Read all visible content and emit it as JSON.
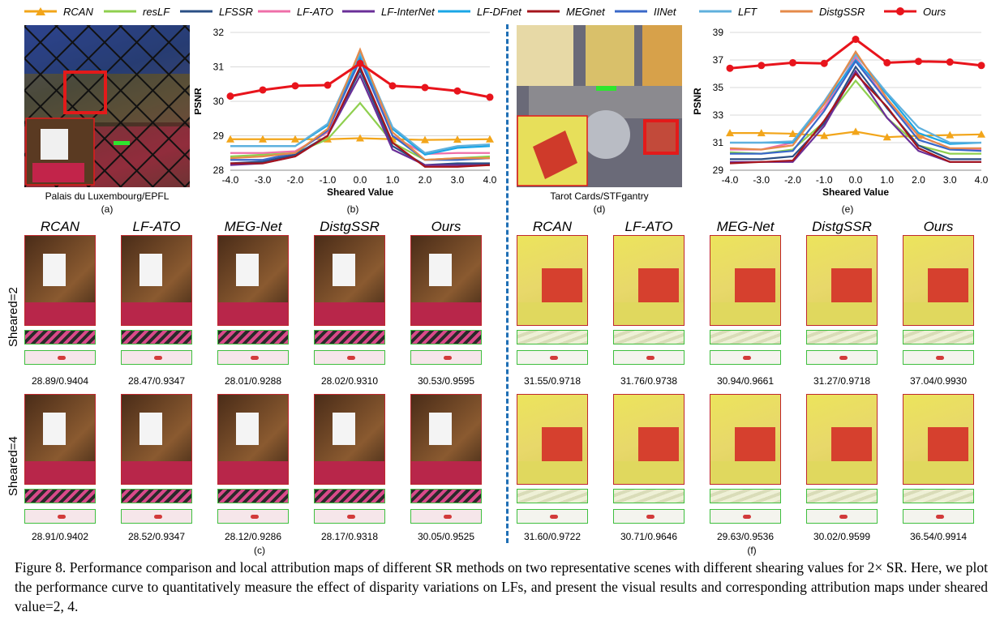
{
  "legend": [
    {
      "name": "RCAN",
      "color": "#f2a51a",
      "marker": "triangle"
    },
    {
      "name": "resLF",
      "color": "#8fcf4f",
      "marker": "none"
    },
    {
      "name": "LFSSR",
      "color": "#2a4f85",
      "marker": "none"
    },
    {
      "name": "LF-ATO",
      "color": "#ef6fa8",
      "marker": "none"
    },
    {
      "name": "LF-InterNet",
      "color": "#6a2f98",
      "marker": "none"
    },
    {
      "name": "LF-DFnet",
      "color": "#1aa6e6",
      "marker": "none"
    },
    {
      "name": "MEGnet",
      "color": "#a5141c",
      "marker": "none"
    },
    {
      "name": "IINet",
      "color": "#3a68c9",
      "marker": "none"
    },
    {
      "name": "LFT",
      "color": "#5fb0dd",
      "marker": "none"
    },
    {
      "name": "DistgSSR",
      "color": "#e58a4a",
      "marker": "none"
    },
    {
      "name": "Ours",
      "color": "#e8141c",
      "marker": "circle"
    }
  ],
  "scene1": {
    "name": "Palais du Luxembourg/EPFL",
    "tag_a": "(a)",
    "tag_b": "(b)",
    "tag_c": "(c)"
  },
  "scene2": {
    "name": "Tarot Cards/STFgantry",
    "tag_d": "(d)",
    "tag_e": "(e)",
    "tag_f": "(f)"
  },
  "chart_data": [
    {
      "type": "line",
      "xlabel": "Sheared Value",
      "ylabel": "PSNR",
      "ylim": [
        28,
        32
      ],
      "yticks": [
        "28",
        "29",
        "30",
        "31",
        "32"
      ],
      "x": [
        -4,
        -3,
        -2,
        -1,
        0,
        1,
        2,
        3,
        4
      ],
      "xticklabels": [
        "-4.0",
        "-3.0",
        "-2.0",
        "-1.0",
        "0.0",
        "1.0",
        "2.0",
        "3.0",
        "4.0"
      ],
      "series": [
        {
          "name": "RCAN",
          "values": [
            28.9,
            28.9,
            28.9,
            28.9,
            28.93,
            28.9,
            28.88,
            28.89,
            28.9
          ]
        },
        {
          "name": "resLF",
          "values": [
            28.4,
            28.45,
            28.5,
            28.9,
            29.95,
            28.8,
            28.3,
            28.35,
            28.4
          ]
        },
        {
          "name": "LFSSR",
          "values": [
            28.2,
            28.25,
            28.45,
            29.0,
            30.9,
            28.7,
            28.15,
            28.2,
            28.2
          ]
        },
        {
          "name": "LF-ATO",
          "values": [
            28.5,
            28.5,
            28.55,
            29.1,
            31.35,
            29.0,
            28.47,
            28.5,
            28.5
          ]
        },
        {
          "name": "LF-InterNet",
          "values": [
            28.15,
            28.2,
            28.4,
            29.0,
            30.75,
            28.6,
            28.15,
            28.15,
            28.15
          ]
        },
        {
          "name": "LF-DFnet",
          "values": [
            28.7,
            28.7,
            28.7,
            29.3,
            31.3,
            29.2,
            28.45,
            28.65,
            28.7
          ]
        },
        {
          "name": "MEGnet",
          "values": [
            28.2,
            28.2,
            28.4,
            29.0,
            31.0,
            28.8,
            28.1,
            28.1,
            28.15
          ]
        },
        {
          "name": "IINet",
          "values": [
            28.3,
            28.3,
            28.5,
            29.15,
            31.2,
            29.0,
            28.3,
            28.3,
            28.35
          ]
        },
        {
          "name": "LFT",
          "values": [
            28.7,
            28.7,
            28.7,
            29.35,
            31.4,
            29.25,
            28.5,
            28.7,
            28.75
          ]
        },
        {
          "name": "DistgSSR",
          "values": [
            28.35,
            28.4,
            28.5,
            29.2,
            31.5,
            29.1,
            28.3,
            28.35,
            28.35
          ]
        },
        {
          "name": "Ours",
          "values": [
            30.15,
            30.33,
            30.45,
            30.47,
            31.1,
            30.45,
            30.4,
            30.3,
            30.12
          ]
        }
      ]
    },
    {
      "type": "line",
      "xlabel": "Sheared Value",
      "ylabel": "PSNR",
      "ylim": [
        29,
        39
      ],
      "yticks": [
        "29",
        "31",
        "33",
        "35",
        "37",
        "39"
      ],
      "x": [
        -4,
        -3,
        -2,
        -1,
        0,
        1,
        2,
        3,
        4
      ],
      "xticklabels": [
        "-4.0",
        "-3.0",
        "-2.0",
        "-1.0",
        "0.0",
        "1.0",
        "2.0",
        "3.0",
        "4.0"
      ],
      "series": [
        {
          "name": "RCAN",
          "values": [
            31.7,
            31.7,
            31.65,
            31.5,
            31.8,
            31.4,
            31.5,
            31.55,
            31.6
          ]
        },
        {
          "name": "resLF",
          "values": [
            30.3,
            30.2,
            30.5,
            32.5,
            35.5,
            32.8,
            30.8,
            30.2,
            30.2
          ]
        },
        {
          "name": "LFSSR",
          "values": [
            29.8,
            29.8,
            30.0,
            32.4,
            36.5,
            33.5,
            30.8,
            29.8,
            29.8
          ]
        },
        {
          "name": "LF-ATO",
          "values": [
            30.5,
            30.5,
            31.0,
            33.5,
            37.2,
            34.0,
            31.5,
            30.6,
            30.5
          ]
        },
        {
          "name": "LF-InterNet",
          "values": [
            29.6,
            29.6,
            29.6,
            32.2,
            36.2,
            32.8,
            30.4,
            29.6,
            29.6
          ]
        },
        {
          "name": "LF-DFnet",
          "values": [
            31.0,
            31.0,
            31.0,
            33.8,
            37.0,
            34.5,
            31.7,
            30.9,
            31.0
          ]
        },
        {
          "name": "MEGnet",
          "values": [
            29.5,
            29.6,
            29.7,
            32.6,
            36.0,
            33.6,
            30.6,
            29.6,
            29.6
          ]
        },
        {
          "name": "IINet",
          "values": [
            30.2,
            30.2,
            30.4,
            33.3,
            36.9,
            34.0,
            31.2,
            30.5,
            30.4
          ]
        },
        {
          "name": "LFT",
          "values": [
            31.0,
            31.0,
            31.1,
            34.0,
            37.4,
            34.6,
            32.1,
            31.0,
            31.0
          ]
        },
        {
          "name": "DistgSSR",
          "values": [
            30.6,
            30.5,
            30.8,
            33.8,
            37.6,
            34.2,
            31.5,
            30.6,
            30.6
          ]
        },
        {
          "name": "Ours",
          "values": [
            36.4,
            36.6,
            36.8,
            36.75,
            38.5,
            36.8,
            36.9,
            36.85,
            36.6
          ]
        }
      ]
    }
  ],
  "methods": [
    "RCAN",
    "LF-ATO",
    "MEG-Net",
    "DistgSSR",
    "Ours"
  ],
  "row_labels": [
    "Sheared=2",
    "Sheared=4"
  ],
  "metrics_left_row1": [
    "28.89/0.9404",
    "28.47/0.9347",
    "28.01/0.9288",
    "28.02/0.9310",
    "30.53/0.9595"
  ],
  "metrics_left_row2": [
    "28.91/0.9402",
    "28.52/0.9347",
    "28.12/0.9286",
    "28.17/0.9318",
    "30.05/0.9525"
  ],
  "metrics_right_row1": [
    "31.55/0.9718",
    "31.76/0.9738",
    "30.94/0.9661",
    "31.27/0.9718",
    "37.04/0.9930"
  ],
  "metrics_right_row2": [
    "31.60/0.9722",
    "30.71/0.9646",
    "29.63/0.9536",
    "30.02/0.9599",
    "36.54/0.9914"
  ],
  "caption": "Figure 8. Performance comparison and local attribution maps of different SR methods on two representative scenes with different shearing values for 2× SR. Here, we plot the performance curve to quantitatively measure the effect of disparity variations on LFs, and present the visual results and corresponding attribution maps under sheared value=2, 4."
}
